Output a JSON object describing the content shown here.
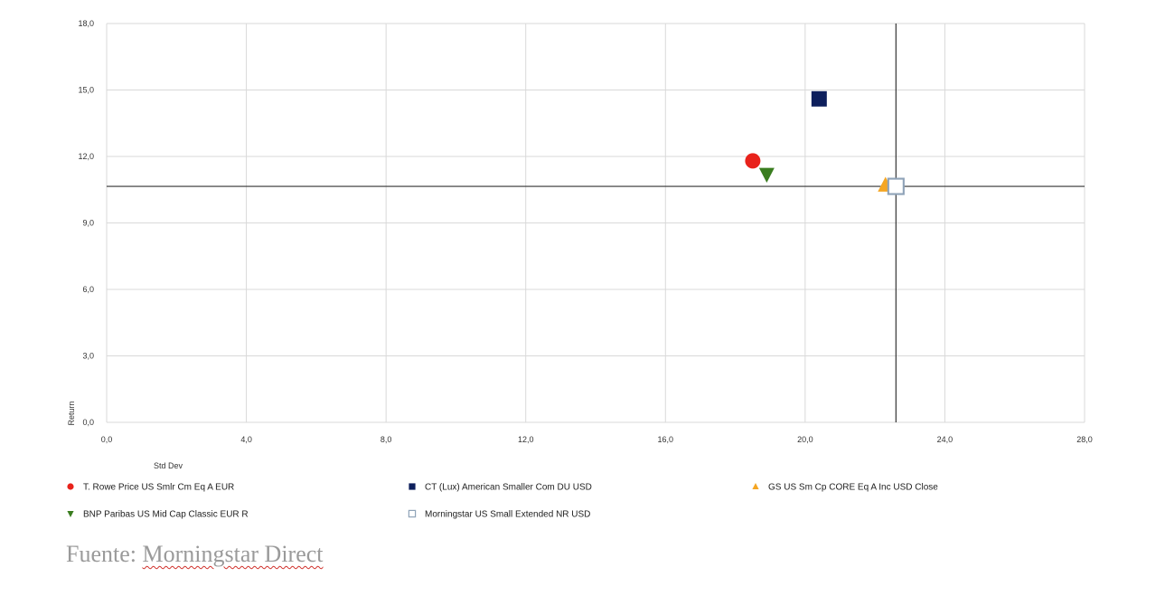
{
  "chart_data": {
    "type": "scatter",
    "title": "",
    "xlabel": "Std Dev",
    "ylabel": "Return",
    "xlim": [
      0,
      28
    ],
    "ylim": [
      0,
      18
    ],
    "x_ticks": [
      "0,0",
      "4,0",
      "8,0",
      "12,0",
      "16,0",
      "20,0",
      "24,0",
      "28,0"
    ],
    "y_ticks": [
      "0,0",
      "3,0",
      "6,0",
      "9,0",
      "12,0",
      "15,0",
      "18,0"
    ],
    "grid": true,
    "legend_position": "bottom",
    "reference_lines": {
      "x": 22.6,
      "y": 10.65
    },
    "series": [
      {
        "name": "T. Rowe Price US Smlr Cm Eq A EUR",
        "marker": "circle",
        "color": "#e8221b",
        "x": 18.5,
        "y": 11.8
      },
      {
        "name": "CT (Lux) American Smaller Com DU USD",
        "marker": "square",
        "color": "#0d1f5c",
        "x": 20.4,
        "y": 14.6
      },
      {
        "name": "GS US Sm Cp CORE Eq A Inc USD Close",
        "marker": "triangle-up",
        "color": "#f5a623",
        "x": 22.3,
        "y": 10.7
      },
      {
        "name": "BNP Paribas US Mid Cap Classic EUR R",
        "marker": "triangle-down",
        "color": "#3a7d1f",
        "x": 18.9,
        "y": 11.2
      },
      {
        "name": "Morningstar US Small Extended NR USD",
        "marker": "square-open",
        "color": "#8fa3b8",
        "x": 22.6,
        "y": 10.65
      }
    ]
  },
  "source": {
    "prefix": "Fuente: ",
    "name": "Morningstar Direct"
  }
}
